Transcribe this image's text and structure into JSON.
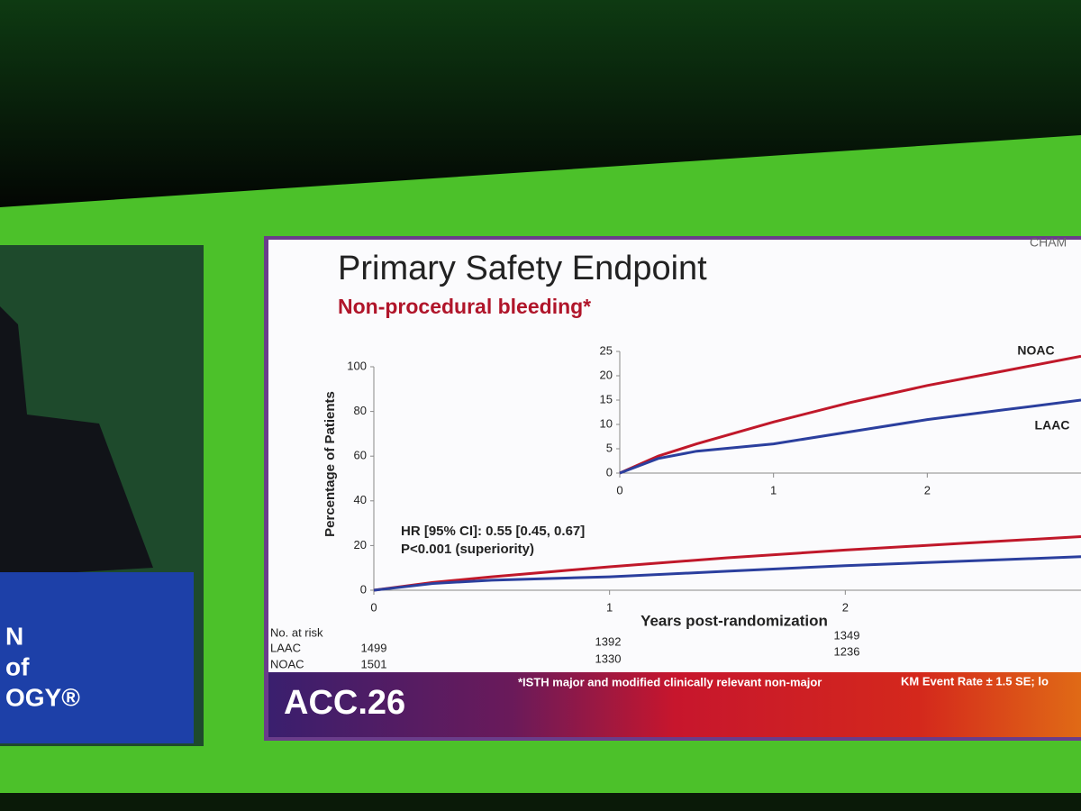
{
  "slide": {
    "title": "Primary Safety Endpoint",
    "subtitle": "Non-procedural bleeding*",
    "corner_text": "CHAM",
    "risk_table": {
      "heading": "No. at risk",
      "rows": [
        {
          "label": "LAAC",
          "counts": [
            "1499",
            "1392",
            "1349"
          ]
        },
        {
          "label": "NOAC",
          "counts": [
            "1501",
            "1330",
            "1236"
          ]
        }
      ]
    },
    "footnote": "*ISTH major and modified clinically relevant non-major",
    "footnote_right": "KM Event Rate ± 1.5 SE; lo",
    "banner": "ACC.26"
  },
  "presenter_screen": {
    "lines": [
      "N",
      "of",
      "OGY®"
    ]
  },
  "chart_data": [
    {
      "type": "line",
      "y_label": "Percentage of Patients",
      "x_label": "Years post-randomization",
      "annotations": [
        "HR [95% CI]: 0.55 [0.45, 0.67]",
        "P<0.001 (superiority)"
      ],
      "x": [
        0,
        0.25,
        0.5,
        1,
        1.5,
        2,
        2.5,
        3
      ],
      "series": [
        {
          "name": "NOAC",
          "color": "#c0182a",
          "values": [
            0,
            3.5,
            6,
            10.5,
            14.5,
            18,
            21,
            24
          ]
        },
        {
          "name": "LAAC",
          "color": "#2b3f9e",
          "values": [
            0,
            3,
            4.5,
            6,
            8.5,
            11,
            13,
            15
          ]
        }
      ],
      "xlim": [
        0,
        3
      ],
      "xticks": [
        0,
        1,
        2
      ],
      "ylim": [
        0,
        100
      ],
      "yticks": [
        0,
        20,
        40,
        60,
        80,
        100
      ]
    },
    {
      "type": "line",
      "x": [
        0,
        0.25,
        0.5,
        1,
        1.5,
        2,
        2.5,
        3
      ],
      "series": [
        {
          "name": "NOAC",
          "color": "#c0182a",
          "values": [
            0,
            3.5,
            6,
            10.5,
            14.5,
            18,
            21,
            24
          ]
        },
        {
          "name": "LAAC",
          "color": "#2b3f9e",
          "values": [
            0,
            3,
            4.5,
            6,
            8.5,
            11,
            13,
            15
          ]
        }
      ],
      "xlim": [
        0,
        3
      ],
      "xticks": [
        0,
        1,
        2
      ],
      "ylim": [
        0,
        25
      ],
      "yticks": [
        0,
        5,
        10,
        15,
        20,
        25
      ]
    }
  ]
}
